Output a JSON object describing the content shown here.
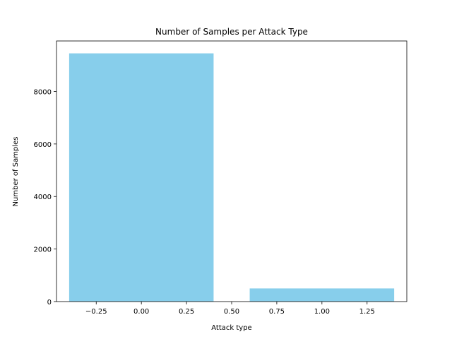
{
  "chart_data": {
    "type": "bar",
    "title": "Number of Samples per Attack Type",
    "xlabel": "Attack type",
    "ylabel": "Number of Samples",
    "bars": [
      {
        "x": 0,
        "value": 9450,
        "width": 0.8
      },
      {
        "x": 1,
        "value": 500,
        "width": 0.8
      }
    ],
    "xlim": [
      -0.47,
      1.47
    ],
    "ylim": [
      0,
      9922
    ],
    "xticks": [
      {
        "value": -0.25,
        "label": "−0.25"
      },
      {
        "value": 0.0,
        "label": "0.00"
      },
      {
        "value": 0.25,
        "label": "0.25"
      },
      {
        "value": 0.5,
        "label": "0.50"
      },
      {
        "value": 0.75,
        "label": "0.75"
      },
      {
        "value": 1.0,
        "label": "1.00"
      },
      {
        "value": 1.25,
        "label": "1.25"
      }
    ],
    "yticks": [
      {
        "value": 0,
        "label": "0"
      },
      {
        "value": 2000,
        "label": "2000"
      },
      {
        "value": 4000,
        "label": "4000"
      },
      {
        "value": 6000,
        "label": "6000"
      },
      {
        "value": 8000,
        "label": "8000"
      }
    ],
    "grid": false,
    "colors": {
      "bar": "#87ceeb",
      "axis": "#000000"
    }
  }
}
